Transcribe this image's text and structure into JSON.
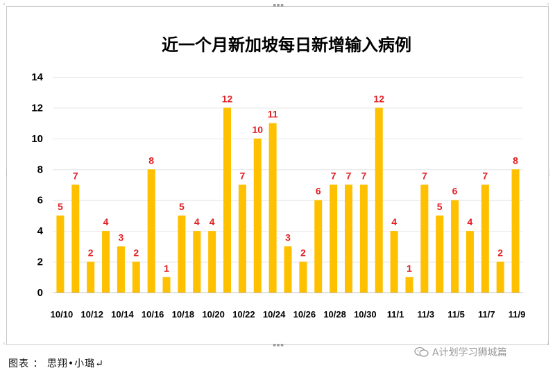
{
  "chart_data": {
    "type": "bar",
    "title": "近一个月新加坡每日新增输入病例",
    "ylim": [
      0,
      14
    ],
    "yticks": [
      "0",
      "2",
      "4",
      "6",
      "8",
      "10",
      "12",
      "14"
    ],
    "grid": true,
    "bar_color": "#ffc000",
    "label_color": "#e31e24",
    "x_tick_labels": [
      "10/10",
      "10/12",
      "10/14",
      "10/16",
      "10/18",
      "10/20",
      "10/22",
      "10/24",
      "10/26",
      "10/28",
      "10/30",
      "11/1",
      "11/3",
      "11/5",
      "11/7",
      "11/9"
    ],
    "categories": [
      "10/10",
      "10/11",
      "10/12",
      "10/13",
      "10/14",
      "10/15",
      "10/16",
      "10/17",
      "10/18",
      "10/19",
      "10/20",
      "10/21",
      "10/22",
      "10/23",
      "10/24",
      "10/25",
      "10/26",
      "10/27",
      "10/28",
      "10/29",
      "10/30",
      "10/31",
      "11/1",
      "11/2",
      "11/3",
      "11/4",
      "11/5",
      "11/6",
      "11/7",
      "11/8",
      "11/9"
    ],
    "values": [
      5,
      7,
      2,
      4,
      3,
      2,
      8,
      1,
      5,
      4,
      4,
      12,
      7,
      10,
      11,
      3,
      2,
      6,
      7,
      7,
      7,
      12,
      4,
      1,
      7,
      5,
      6,
      4,
      7,
      2,
      8
    ]
  },
  "caption": "图表 ： 思翔•小璐↵",
  "watermark": "A计划学习狮城篇",
  "icons": {
    "watermark_icon": "wechat-icon"
  }
}
